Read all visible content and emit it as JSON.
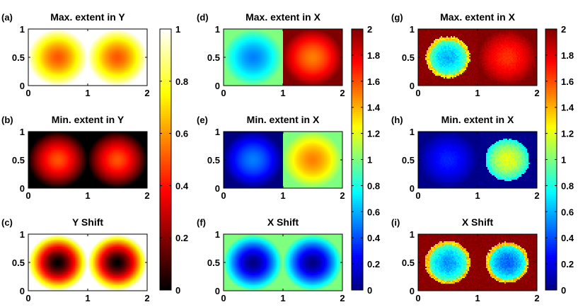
{
  "chart_data": [
    {
      "type": "heatmap",
      "label": "(a)",
      "title": "Max. extent in Y",
      "colormap": "hot",
      "clim": [
        0,
        1
      ],
      "xlim": [
        0,
        2
      ],
      "ylim": [
        0,
        1
      ],
      "xticks": [
        "0",
        "1",
        "2"
      ],
      "yticks": [
        "0",
        "0.5",
        "1"
      ],
      "field": "maxY",
      "description": "value near 1 at cell edges, about 0.5 at cell centres (0.5,0.5) and (1.5,0.5)"
    },
    {
      "type": "heatmap",
      "label": "(b)",
      "title": "Min. extent in Y",
      "colormap": "hot",
      "clim": [
        0,
        1
      ],
      "xlim": [
        0,
        2
      ],
      "ylim": [
        0,
        1
      ],
      "xticks": [
        "0",
        "1",
        "2"
      ],
      "yticks": [
        "0",
        "0.5",
        "1"
      ],
      "field": "minY",
      "description": "value near 0 at cell edges, about 0.5 at cell centres"
    },
    {
      "type": "heatmap",
      "label": "(c)",
      "title": "Y Shift",
      "colormap": "hot",
      "clim": [
        0,
        1
      ],
      "xlim": [
        0,
        2
      ],
      "ylim": [
        0,
        1
      ],
      "xticks": [
        "0",
        "1",
        "2"
      ],
      "yticks": [
        "0",
        "0.5",
        "1"
      ],
      "field": "shiftY",
      "description": "value near 1 at cell edges, near 0 at cell centres"
    },
    {
      "type": "heatmap",
      "label": "(d)",
      "title": "Max. extent in X",
      "colormap": "jet",
      "clim": [
        0,
        2
      ],
      "xlim": [
        0,
        2
      ],
      "ylim": [
        0,
        1
      ],
      "xticks": [
        "0",
        "1",
        "2"
      ],
      "yticks": [
        "0",
        "0.5",
        "1"
      ],
      "field": "maxX",
      "description": "left cell about 0.5 at centre rising to 1 at edges; right cell about 2 at edges, about 1.5 at centre"
    },
    {
      "type": "heatmap",
      "label": "(e)",
      "title": "Min. extent in X",
      "colormap": "jet",
      "clim": [
        0,
        2
      ],
      "xlim": [
        0,
        2
      ],
      "ylim": [
        0,
        1
      ],
      "xticks": [
        "0",
        "1",
        "2"
      ],
      "yticks": [
        "0",
        "0.5",
        "1"
      ],
      "field": "minX",
      "description": "left cell near 0 at edges, about 0.5 at centre; right cell about 1 at edges, about 1.5 at centre"
    },
    {
      "type": "heatmap",
      "label": "(f)",
      "title": "X Shift",
      "colormap": "jet",
      "clim": [
        0,
        2
      ],
      "xlim": [
        0,
        2
      ],
      "ylim": [
        0,
        1
      ],
      "xticks": [
        "0",
        "1",
        "2"
      ],
      "yticks": [
        "0",
        "0.5",
        "1"
      ],
      "field": "shiftX",
      "description": "about 1 at cell edges, near 0 at both cell centres"
    },
    {
      "type": "heatmap",
      "label": "(g)",
      "title": "Max. extent in X",
      "colormap": "jet",
      "clim": [
        0,
        2
      ],
      "xlim": [
        0,
        2
      ],
      "ylim": [
        0,
        1
      ],
      "xticks": [
        "0",
        "1",
        "2"
      ],
      "yticks": [
        "0",
        "0.5",
        "1"
      ],
      "field": "maxXnoisy",
      "description": "noisy estimate: background about 2, left blob about 0.6-0.9 with yellow rim, right cell about 1.8-2"
    },
    {
      "type": "heatmap",
      "label": "(h)",
      "title": "Min. extent in X",
      "colormap": "jet",
      "clim": [
        0,
        2
      ],
      "xlim": [
        0,
        2
      ],
      "ylim": [
        0,
        1
      ],
      "xticks": [
        "0",
        "1",
        "2"
      ],
      "yticks": [
        "0",
        "0.5",
        "1"
      ],
      "field": "minXnoisy",
      "description": "noisy estimate: background about 0, left cell about 0.2-0.4, right blob about 0.9-1.2"
    },
    {
      "type": "heatmap",
      "label": "(i)",
      "title": "X Shift",
      "colormap": "jet",
      "clim": [
        0,
        2
      ],
      "xlim": [
        0,
        2
      ],
      "ylim": [
        0,
        1
      ],
      "xticks": [
        "0",
        "1",
        "2"
      ],
      "yticks": [
        "0",
        "0.5",
        "1"
      ],
      "field": "shiftXnoisy",
      "description": "noisy estimate: background about 2, two blobs about 0.5-1 with yellow rims"
    }
  ],
  "colorbars": [
    {
      "colormap": "hot",
      "range": [
        0,
        1
      ],
      "ticks": [
        "0",
        "0.2",
        "0.4",
        "0.6",
        "0.8",
        "1"
      ]
    },
    {
      "colormap": "jet",
      "range": [
        0,
        2
      ],
      "ticks": [
        "0",
        "0.2",
        "0.4",
        "0.6",
        "0.8",
        "1",
        "1.2",
        "1.4",
        "1.6",
        "1.8",
        "2"
      ]
    },
    {
      "colormap": "jet",
      "range": [
        0,
        2
      ],
      "ticks": [
        "0",
        "0.2",
        "0.4",
        "0.6",
        "0.8",
        "1",
        "1.2",
        "1.4",
        "1.6",
        "1.8",
        "2"
      ]
    }
  ]
}
